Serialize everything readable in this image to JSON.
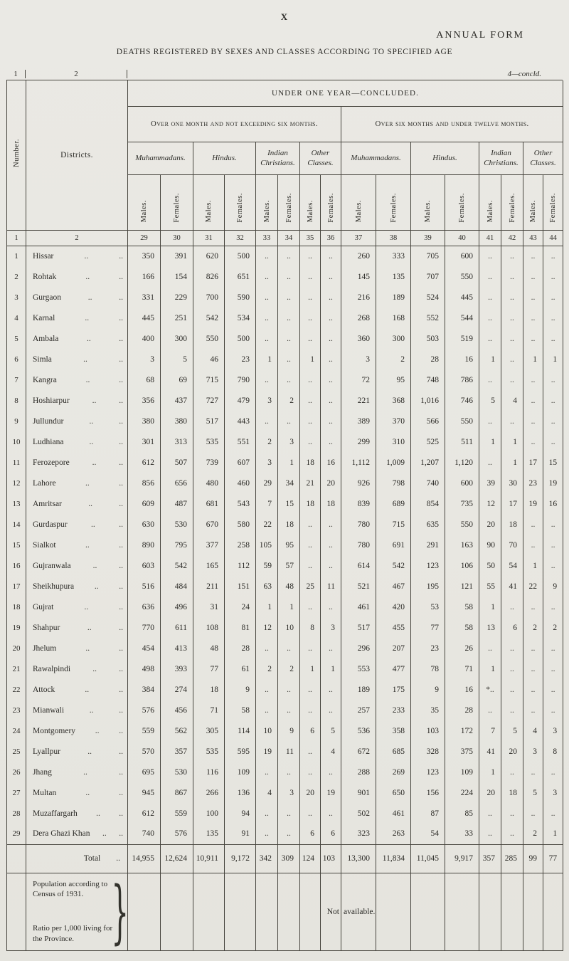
{
  "page": {
    "page_mark": "X",
    "form_title": "ANNUAL FORM",
    "table_title": "DEATHS REGISTERED BY SEXES AND CLASSES ACCORDING TO SPECIFIED AGE",
    "ref_left": "1",
    "ref_mid": "2",
    "ref_right": "4—concld."
  },
  "header": {
    "span_title": "UNDER ONE YEAR—CONCLUDED.",
    "groups": [
      "Over one month and not exceeding six months.",
      "Over six months and under twelve months."
    ],
    "classes": [
      "Muhammadans.",
      "Hindus.",
      "Indian Christians.",
      "Other Classes."
    ],
    "sex": [
      "Males.",
      "Females."
    ],
    "number_label": "Number.",
    "districts_label": "Districts.",
    "column_numbers": [
      "1",
      "2",
      "29",
      "30",
      "31",
      "32",
      "33",
      "34",
      "35",
      "36",
      "37",
      "38",
      "39",
      "40",
      "41",
      "42",
      "43",
      "44"
    ]
  },
  "rows": [
    {
      "num": "1",
      "district": "Hissar",
      "values": [
        "350",
        "391",
        "620",
        "500",
        "..",
        "..",
        "..",
        "..",
        "260",
        "333",
        "705",
        "600",
        "..",
        "..",
        "..",
        ".."
      ]
    },
    {
      "num": "2",
      "district": "Rohtak",
      "values": [
        "166",
        "154",
        "826",
        "651",
        "..",
        "..",
        "..",
        "..",
        "145",
        "135",
        "707",
        "550",
        "..",
        "..",
        "..",
        ".."
      ]
    },
    {
      "num": "3",
      "district": "Gurgaon",
      "values": [
        "331",
        "229",
        "700",
        "590",
        "..",
        "..",
        "..",
        "..",
        "216",
        "189",
        "524",
        "445",
        "..",
        "..",
        "..",
        ".."
      ]
    },
    {
      "num": "4",
      "district": "Karnal",
      "values": [
        "445",
        "251",
        "542",
        "534",
        "..",
        "..",
        "..",
        "..",
        "268",
        "168",
        "552",
        "544",
        "..",
        "..",
        "..",
        ".."
      ]
    },
    {
      "num": "5",
      "district": "Ambala",
      "values": [
        "400",
        "300",
        "550",
        "500",
        "..",
        "..",
        "..",
        "..",
        "360",
        "300",
        "503",
        "519",
        "..",
        "..",
        "..",
        ".."
      ]
    },
    {
      "num": "6",
      "district": "Simla",
      "values": [
        "3",
        "5",
        "46",
        "23",
        "1",
        "..",
        "1",
        "..",
        "3",
        "2",
        "28",
        "16",
        "1",
        "..",
        "1",
        "1"
      ]
    },
    {
      "num": "7",
      "district": "Kangra",
      "values": [
        "68",
        "69",
        "715",
        "790",
        "..",
        "..",
        "..",
        "..",
        "72",
        "95",
        "748",
        "786",
        "..",
        "..",
        "..",
        ".."
      ]
    },
    {
      "num": "8",
      "district": "Hoshiarpur",
      "values": [
        "356",
        "437",
        "727",
        "479",
        "3",
        "2",
        "..",
        "..",
        "221",
        "368",
        "1,016",
        "746",
        "5",
        "4",
        "..",
        ".."
      ]
    },
    {
      "num": "9",
      "district": "Jullundur",
      "values": [
        "380",
        "380",
        "517",
        "443",
        "..",
        "..",
        "..",
        "..",
        "389",
        "370",
        "566",
        "550",
        "..",
        "..",
        "..",
        ".."
      ]
    },
    {
      "num": "10",
      "district": "Ludhiana",
      "values": [
        "301",
        "313",
        "535",
        "551",
        "2",
        "3",
        "..",
        "..",
        "299",
        "310",
        "525",
        "511",
        "1",
        "1",
        "..",
        ".."
      ]
    },
    {
      "num": "11",
      "district": "Ferozepore",
      "values": [
        "612",
        "507",
        "739",
        "607",
        "3",
        "1",
        "18",
        "16",
        "1,112",
        "1,009",
        "1,207",
        "1,120",
        "..",
        "1",
        "17",
        "15"
      ]
    },
    {
      "num": "12",
      "district": "Lahore",
      "values": [
        "856",
        "656",
        "480",
        "460",
        "29",
        "34",
        "21",
        "20",
        "926",
        "798",
        "740",
        "600",
        "39",
        "30",
        "23",
        "19"
      ]
    },
    {
      "num": "13",
      "district": "Amritsar",
      "values": [
        "609",
        "487",
        "681",
        "543",
        "7",
        "15",
        "18",
        "18",
        "839",
        "689",
        "854",
        "735",
        "12",
        "17",
        "19",
        "16"
      ]
    },
    {
      "num": "14",
      "district": "Gurdaspur",
      "values": [
        "630",
        "530",
        "670",
        "580",
        "22",
        "18",
        "..",
        "..",
        "780",
        "715",
        "635",
        "550",
        "20",
        "18",
        "..",
        ".."
      ]
    },
    {
      "num": "15",
      "district": "Sialkot",
      "values": [
        "890",
        "795",
        "377",
        "258",
        "105",
        "95",
        "..",
        "..",
        "780",
        "691",
        "291",
        "163",
        "90",
        "70",
        "..",
        ".."
      ]
    },
    {
      "num": "16",
      "district": "Gujranwala",
      "values": [
        "603",
        "542",
        "165",
        "112",
        "59",
        "57",
        "..",
        "..",
        "614",
        "542",
        "123",
        "106",
        "50",
        "54",
        "1",
        ".."
      ]
    },
    {
      "num": "17",
      "district": "Sheikhupura",
      "values": [
        "516",
        "484",
        "211",
        "151",
        "63",
        "48",
        "25",
        "11",
        "521",
        "467",
        "195",
        "121",
        "55",
        "41",
        "22",
        "9"
      ]
    },
    {
      "num": "18",
      "district": "Gujrat",
      "values": [
        "636",
        "496",
        "31",
        "24",
        "1",
        "1",
        "..",
        "..",
        "461",
        "420",
        "53",
        "58",
        "1",
        "..",
        "..",
        ".."
      ]
    },
    {
      "num": "19",
      "district": "Shahpur",
      "values": [
        "770",
        "611",
        "108",
        "81",
        "12",
        "10",
        "8",
        "3",
        "517",
        "455",
        "77",
        "58",
        "13",
        "6",
        "2",
        "2"
      ]
    },
    {
      "num": "20",
      "district": "Jhelum",
      "values": [
        "454",
        "413",
        "48",
        "28",
        "..",
        "..",
        "..",
        "..",
        "296",
        "207",
        "23",
        "26",
        "..",
        "..",
        "..",
        ".."
      ]
    },
    {
      "num": "21",
      "district": "Rawalpindi",
      "values": [
        "498",
        "393",
        "77",
        "61",
        "2",
        "2",
        "1",
        "1",
        "553",
        "477",
        "78",
        "71",
        "1",
        "..",
        "..",
        ".."
      ]
    },
    {
      "num": "22",
      "district": "Attock",
      "values": [
        "384",
        "274",
        "18",
        "9",
        "..",
        "..",
        "..",
        "..",
        "189",
        "175",
        "9",
        "16",
        "*..",
        "..",
        "..",
        ".."
      ]
    },
    {
      "num": "23",
      "district": "Mianwali",
      "values": [
        "576",
        "456",
        "71",
        "58",
        "..",
        "..",
        "..",
        "..",
        "257",
        "233",
        "35",
        "28",
        "..",
        "..",
        "..",
        ".."
      ]
    },
    {
      "num": "24",
      "district": "Montgomery",
      "values": [
        "559",
        "562",
        "305",
        "114",
        "10",
        "9",
        "6",
        "5",
        "536",
        "358",
        "103",
        "172",
        "7",
        "5",
        "4",
        "3"
      ]
    },
    {
      "num": "25",
      "district": "Lyallpur",
      "values": [
        "570",
        "357",
        "535",
        "595",
        "19",
        "11",
        "..",
        "4",
        "672",
        "685",
        "328",
        "375",
        "41",
        "20",
        "3",
        "8"
      ]
    },
    {
      "num": "26",
      "district": "Jhang",
      "values": [
        "695",
        "530",
        "116",
        "109",
        "..",
        "..",
        "..",
        "..",
        "288",
        "269",
        "123",
        "109",
        "1",
        "..",
        "..",
        ".."
      ]
    },
    {
      "num": "27",
      "district": "Multan",
      "values": [
        "945",
        "867",
        "266",
        "136",
        "4",
        "3",
        "20",
        "19",
        "901",
        "650",
        "156",
        "224",
        "20",
        "18",
        "5",
        "3"
      ]
    },
    {
      "num": "28",
      "district": "Muzaffargarh",
      "values": [
        "612",
        "559",
        "100",
        "94",
        "..",
        "..",
        "..",
        "..",
        "502",
        "461",
        "87",
        "85",
        "..",
        "..",
        "..",
        ".."
      ]
    },
    {
      "num": "29",
      "district": "Dera Ghazi Khan",
      "values": [
        "740",
        "576",
        "135",
        "91",
        "..",
        "..",
        "6",
        "6",
        "323",
        "263",
        "54",
        "33",
        "..",
        "..",
        "2",
        "1"
      ]
    }
  ],
  "total": {
    "label": "Total",
    "values": [
      "14,955",
      "12,624",
      "10,911",
      "9,172",
      "342",
      "309",
      "124",
      "103",
      "13,300",
      "11,834",
      "11,045",
      "9,917",
      "357",
      "285",
      "99",
      "77"
    ]
  },
  "footer": {
    "population_label": "Population according to Census of 1931.",
    "ratio_label": "Ratio per 1,000 living for the Province.",
    "note_left": "Not",
    "note_right": "available."
  }
}
